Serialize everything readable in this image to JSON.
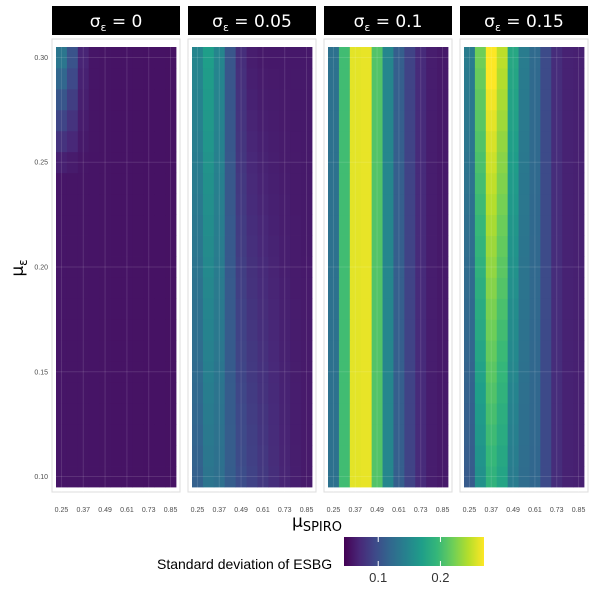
{
  "chart_data": {
    "type": "heatmap",
    "colormap": "viridis",
    "facet_prefix": "σ",
    "facet_subscript": "ε",
    "facets": [
      {
        "label": "0",
        "sigma": 0
      },
      {
        "label": "0.05",
        "sigma": 0.05
      },
      {
        "label": "0.1",
        "sigma": 0.1
      },
      {
        "label": "0.15",
        "sigma": 0.15
      }
    ],
    "x_values": [
      0.25,
      0.31,
      0.37,
      0.43,
      0.49,
      0.55,
      0.61,
      0.67,
      0.73,
      0.79,
      0.85
    ],
    "x_ticks": [
      "0.25",
      "0.37",
      "0.49",
      "0.61",
      "0.73",
      "0.85"
    ],
    "x_tick_values": [
      0.25,
      0.37,
      0.49,
      0.61,
      0.73,
      0.85
    ],
    "y_range": [
      0.1,
      0.3
    ],
    "y_rows": 21,
    "y_ticks": [
      "0.10",
      "0.15",
      "0.20",
      "0.25",
      "0.30"
    ],
    "y_tick_values": [
      0.1,
      0.15,
      0.2,
      0.25,
      0.3
    ],
    "xlabel_main": "μ",
    "xlabel_sub": "SPIRO",
    "ylabel_main": "μ",
    "ylabel_sub": "ε",
    "legend": {
      "title": "Standard deviation of ESBG",
      "range": [
        0.045,
        0.27
      ],
      "ticks": [
        "0.1",
        "0.2"
      ],
      "tick_values": [
        0.1,
        0.2
      ],
      "placement": "bottom"
    },
    "grid": true,
    "panel_border_color": "#dddddd",
    "strip_background": "#000000"
  }
}
